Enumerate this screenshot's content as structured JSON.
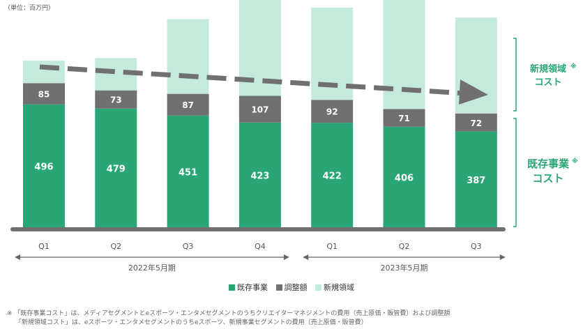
{
  "unit_label": "（単位：百万円）",
  "colors": {
    "existing": "#2aa676",
    "adjustment": "#707070",
    "new": "#c4eadc",
    "bracket": "#2aa676",
    "trend": "#707070",
    "axis": "#666666"
  },
  "chart_data": {
    "type": "bar",
    "stacked": true,
    "categories": [
      "Q1",
      "Q2",
      "Q3",
      "Q4",
      "Q1",
      "Q2",
      "Q3"
    ],
    "series": [
      {
        "name": "既存事業",
        "values": [
          496,
          479,
          451,
          423,
          422,
          406,
          387
        ]
      },
      {
        "name": "調整額",
        "values": [
          85,
          73,
          87,
          107,
          92,
          71,
          72
        ]
      },
      {
        "name": "新規領域",
        "values": [
          90,
          130,
          300,
          400,
          370,
          460,
          385
        ]
      }
    ],
    "ylim": [
      0,
      1000
    ],
    "period_groups": [
      {
        "label": "2022年5月期",
        "range": [
          0,
          3
        ]
      },
      {
        "label": "2023年5月期",
        "range": [
          4,
          6
        ]
      }
    ],
    "trend_arrow": true
  },
  "side_labels": {
    "new_line1": "新規領域",
    "new_mark": "※",
    "new_line2": "コスト",
    "existing_line1": "既存事業",
    "existing_mark": "※",
    "existing_line2": "コスト"
  },
  "legend": [
    {
      "label": "既存事業",
      "key": "existing"
    },
    {
      "label": "調整額",
      "key": "adjustment"
    },
    {
      "label": "新規領域",
      "key": "new"
    }
  ],
  "footnotes": [
    "※ 「既存事業コスト」は、メディアセグメントとeスポーツ・エンタメセグメントのうちクリエイターマネジメントの費用（売上原価・販管費）および調整額",
    "　 「新規領域コスト」は、eスポーツ・エンタメセグメントのうちeスポーツ、新規事業セグメントの費用（売上原価・販管費）"
  ]
}
